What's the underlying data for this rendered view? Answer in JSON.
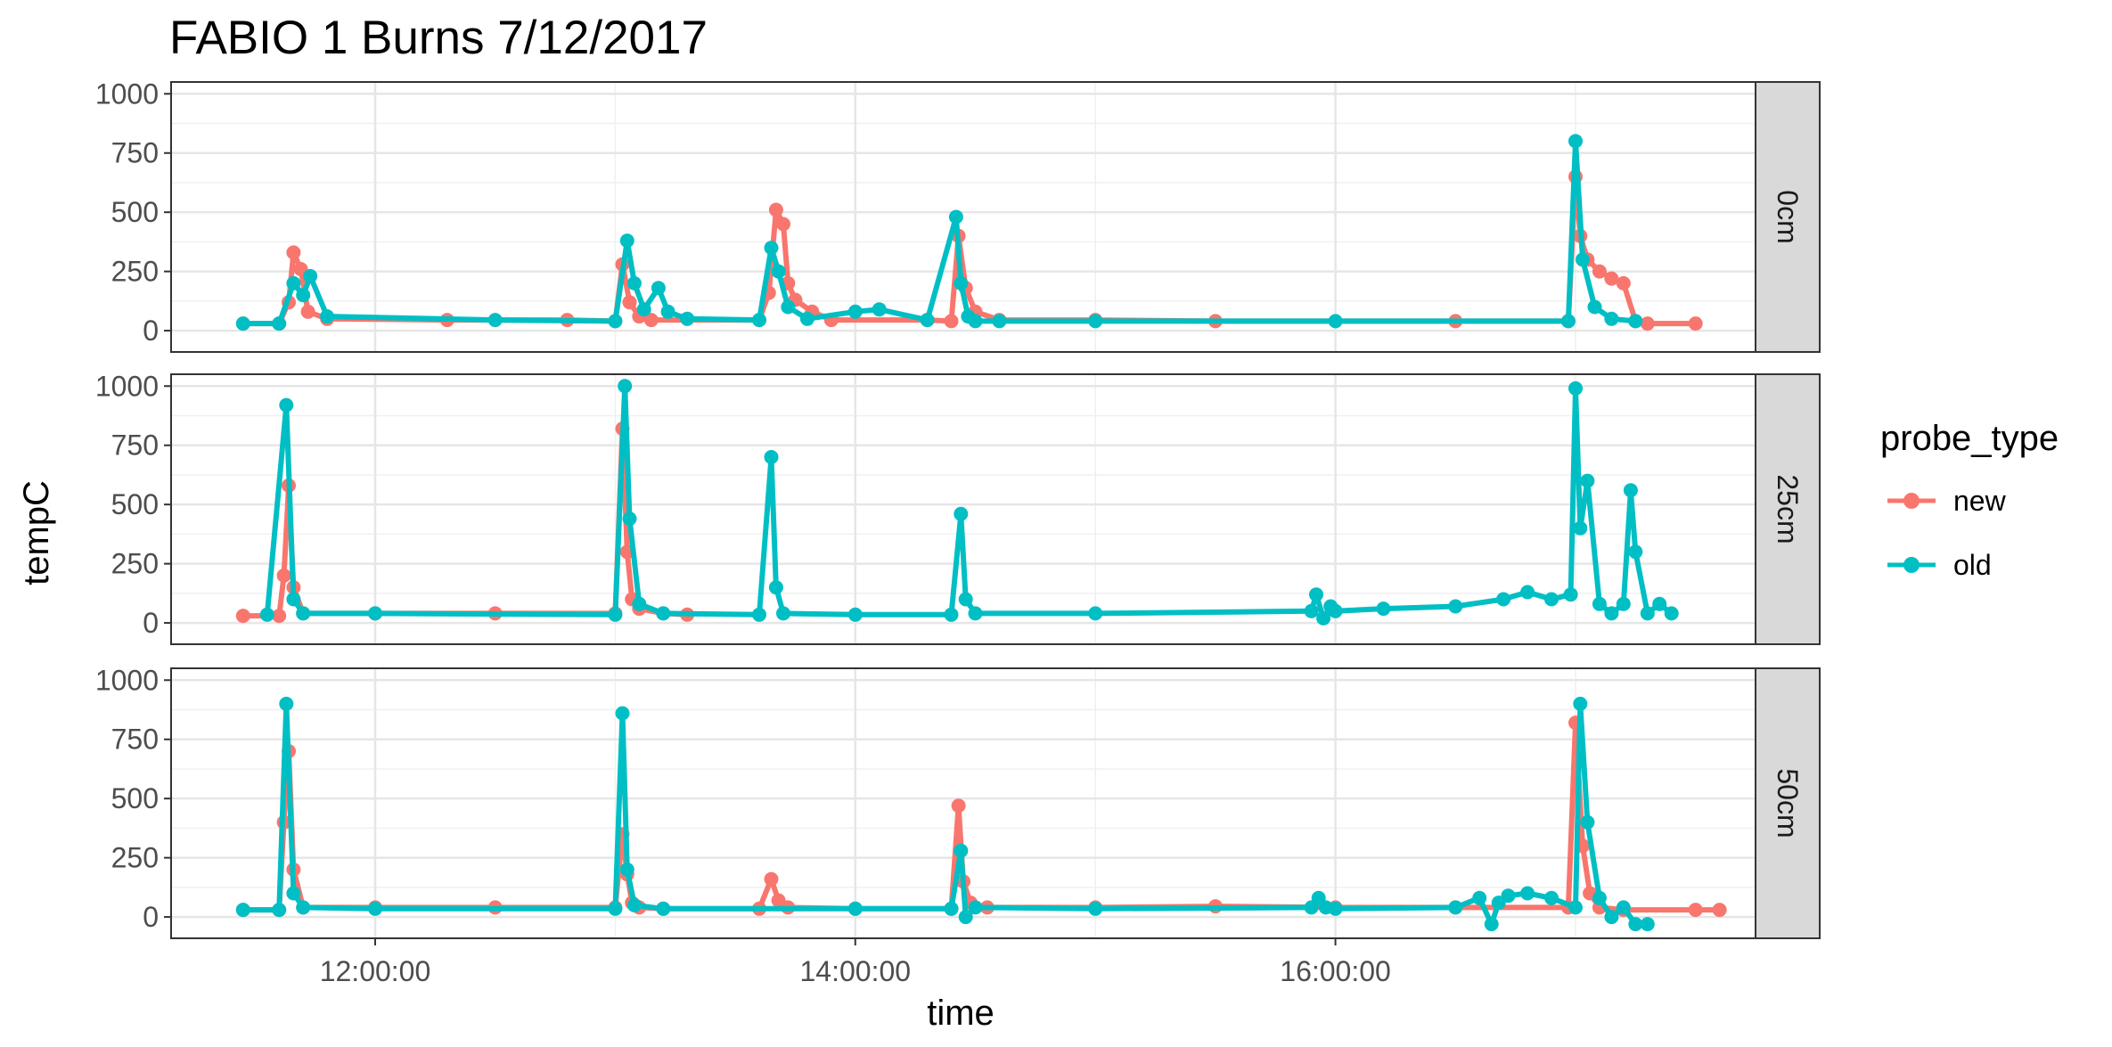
{
  "chart_data": {
    "type": "line",
    "title": "FABIO 1 Burns 7/12/2017",
    "xlabel": "time",
    "ylabel": "tempC",
    "x_ticks": [
      "12:00:00",
      "14:00:00",
      "16:00:00"
    ],
    "x_tick_values_hours": [
      12,
      14,
      16
    ],
    "xlim_hours": [
      11.15,
      17.75
    ],
    "ylim": [
      -90,
      1050
    ],
    "y_ticks": [
      0,
      250,
      500,
      750,
      1000
    ],
    "facets": [
      "0cm",
      "25cm",
      "50cm"
    ],
    "grid": true,
    "legend_position": "right",
    "legend": {
      "title": "probe_type",
      "entries": [
        {
          "label": "new",
          "color": "#F8766D"
        },
        {
          "label": "old",
          "color": "#00BFC4"
        }
      ]
    },
    "series": [
      {
        "facet": "0cm",
        "name": "new",
        "color": "#F8766D",
        "x": [
          11.45,
          11.6,
          11.64,
          11.66,
          11.69,
          11.72,
          11.8,
          12.3,
          12.8,
          13.0,
          13.03,
          13.06,
          13.1,
          13.15,
          13.6,
          13.64,
          13.67,
          13.7,
          13.72,
          13.75,
          13.82,
          13.9,
          14.3,
          14.4,
          14.43,
          14.46,
          14.5,
          14.6,
          15.0,
          15.5,
          16.5,
          16.97,
          17.0,
          17.02,
          17.05,
          17.1,
          17.15,
          17.2,
          17.25,
          17.3,
          17.5
        ],
        "y": [
          30,
          30,
          120,
          330,
          260,
          80,
          50,
          45,
          45,
          40,
          280,
          120,
          60,
          45,
          45,
          160,
          510,
          450,
          200,
          130,
          80,
          45,
          45,
          40,
          400,
          180,
          80,
          45,
          45,
          40,
          40,
          40,
          650,
          400,
          300,
          250,
          220,
          200,
          40,
          30,
          30
        ]
      },
      {
        "facet": "0cm",
        "name": "old",
        "color": "#00BFC4",
        "x": [
          11.45,
          11.6,
          11.66,
          11.7,
          11.73,
          11.8,
          12.5,
          13.0,
          13.05,
          13.08,
          13.12,
          13.18,
          13.22,
          13.3,
          13.6,
          13.65,
          13.68,
          13.72,
          13.8,
          14.0,
          14.1,
          14.3,
          14.42,
          14.44,
          14.47,
          14.5,
          14.6,
          15.0,
          16.0,
          16.97,
          17.0,
          17.03,
          17.08,
          17.15,
          17.25
        ],
        "y": [
          30,
          30,
          200,
          150,
          230,
          60,
          45,
          40,
          380,
          200,
          90,
          180,
          80,
          50,
          45,
          350,
          250,
          100,
          50,
          80,
          90,
          45,
          480,
          200,
          60,
          40,
          40,
          40,
          40,
          40,
          800,
          300,
          100,
          50,
          40
        ]
      },
      {
        "facet": "25cm",
        "name": "new",
        "color": "#F8766D",
        "x": [
          11.45,
          11.6,
          11.62,
          11.64,
          11.66,
          11.7,
          12.0,
          12.5,
          13.0,
          13.03,
          13.05,
          13.07,
          13.1,
          13.2,
          13.3
        ],
        "y": [
          30,
          30,
          200,
          580,
          150,
          40,
          40,
          40,
          40,
          820,
          300,
          100,
          60,
          40,
          35
        ]
      },
      {
        "facet": "25cm",
        "name": "old",
        "color": "#00BFC4",
        "x": [
          11.55,
          11.63,
          11.66,
          11.7,
          12.0,
          13.0,
          13.04,
          13.06,
          13.1,
          13.2,
          13.6,
          13.65,
          13.67,
          13.7,
          14.0,
          14.4,
          14.44,
          14.46,
          14.5,
          15.0,
          15.9,
          15.92,
          15.95,
          15.98,
          16.0,
          16.2,
          16.5,
          16.7,
          16.8,
          16.9,
          16.98,
          17.0,
          17.02,
          17.05,
          17.1,
          17.15,
          17.2,
          17.23,
          17.25,
          17.3,
          17.35,
          17.4
        ],
        "y": [
          35,
          920,
          100,
          40,
          40,
          35,
          1000,
          440,
          80,
          40,
          35,
          700,
          150,
          40,
          35,
          35,
          460,
          100,
          40,
          40,
          50,
          120,
          20,
          70,
          50,
          60,
          70,
          100,
          130,
          100,
          120,
          990,
          400,
          600,
          80,
          40,
          80,
          560,
          300,
          40,
          80,
          40
        ]
      },
      {
        "facet": "50cm",
        "name": "new",
        "color": "#F8766D",
        "x": [
          11.45,
          11.6,
          11.62,
          11.64,
          11.66,
          11.7,
          12.0,
          12.5,
          13.0,
          13.03,
          13.05,
          13.07,
          13.1,
          13.2,
          13.6,
          13.65,
          13.68,
          13.72,
          14.0,
          14.4,
          14.43,
          14.45,
          14.48,
          14.55,
          15.0,
          15.5,
          16.0,
          16.5,
          16.97,
          17.0,
          17.03,
          17.06,
          17.1,
          17.2,
          17.5,
          17.6
        ],
        "y": [
          30,
          30,
          400,
          700,
          200,
          40,
          40,
          40,
          40,
          350,
          180,
          60,
          40,
          35,
          35,
          160,
          70,
          40,
          35,
          35,
          470,
          150,
          60,
          40,
          40,
          45,
          40,
          40,
          40,
          820,
          300,
          100,
          40,
          30,
          30,
          30
        ]
      },
      {
        "facet": "50cm",
        "name": "old",
        "color": "#00BFC4",
        "x": [
          11.45,
          11.6,
          11.63,
          11.66,
          11.7,
          12.0,
          13.0,
          13.03,
          13.05,
          13.08,
          13.2,
          14.0,
          14.4,
          14.44,
          14.46,
          14.5,
          15.0,
          15.9,
          15.93,
          15.96,
          16.0,
          16.5,
          16.6,
          16.65,
          16.68,
          16.72,
          16.8,
          16.9,
          17.0,
          17.02,
          17.05,
          17.1,
          17.15,
          17.2,
          17.25,
          17.3
        ],
        "y": [
          30,
          30,
          900,
          100,
          40,
          35,
          35,
          860,
          200,
          50,
          35,
          35,
          35,
          280,
          0,
          40,
          35,
          40,
          80,
          40,
          35,
          40,
          80,
          -30,
          60,
          90,
          100,
          80,
          40,
          900,
          400,
          80,
          0,
          40,
          -30,
          -30
        ]
      }
    ]
  }
}
